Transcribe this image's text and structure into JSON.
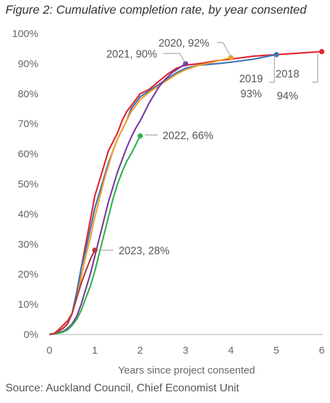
{
  "title": "Figure 2: Cumulative completion rate, by year consented",
  "source": "Source: Auckland Council, Chief Economist Unit",
  "chart_data": {
    "type": "line",
    "xlabel": "Years since project consented",
    "ylabel": "",
    "xlim": [
      0,
      6
    ],
    "ylim": [
      0,
      100
    ],
    "x_ticks": [
      "0",
      "1",
      "2",
      "3",
      "4",
      "5",
      "6"
    ],
    "y_ticks": [
      "0%",
      "10%",
      "20%",
      "30%",
      "40%",
      "50%",
      "60%",
      "70%",
      "80%",
      "90%",
      "100%"
    ],
    "grid": false,
    "legend": "none (series labelled directly)",
    "series": [
      {
        "name": "2018",
        "color": "#e3232c",
        "label_lines": [
          "2018",
          "94%"
        ],
        "end": [
          6,
          94
        ],
        "points": [
          [
            0,
            0
          ],
          [
            0.1,
            0.3
          ],
          [
            0.2,
            1.5
          ],
          [
            0.3,
            3
          ],
          [
            0.4,
            4.5
          ],
          [
            0.5,
            7
          ],
          [
            0.6,
            13
          ],
          [
            0.7,
            22
          ],
          [
            0.8,
            30
          ],
          [
            0.9,
            38
          ],
          [
            1.0,
            46
          ],
          [
            1.1,
            51
          ],
          [
            1.2,
            56
          ],
          [
            1.3,
            61
          ],
          [
            1.4,
            64
          ],
          [
            1.5,
            67
          ],
          [
            1.6,
            71
          ],
          [
            1.7,
            74
          ],
          [
            1.8,
            76
          ],
          [
            1.9,
            78
          ],
          [
            2.0,
            80
          ],
          [
            2.2,
            81.5
          ],
          [
            2.4,
            84
          ],
          [
            2.6,
            86.5
          ],
          [
            2.8,
            88.5
          ],
          [
            3.0,
            89.5
          ],
          [
            3.3,
            90
          ],
          [
            3.7,
            91
          ],
          [
            4.0,
            91.5
          ],
          [
            4.5,
            92.5
          ],
          [
            5.0,
            93
          ],
          [
            5.5,
            93.5
          ],
          [
            6.0,
            94
          ]
        ]
      },
      {
        "name": "2019",
        "color": "#3a73b5",
        "label_lines": [
          "2019",
          "93%"
        ],
        "end": [
          5,
          93
        ],
        "points": [
          [
            0,
            0
          ],
          [
            0.1,
            0.3
          ],
          [
            0.2,
            1
          ],
          [
            0.3,
            2
          ],
          [
            0.4,
            3.5
          ],
          [
            0.5,
            7
          ],
          [
            0.6,
            14
          ],
          [
            0.7,
            22
          ],
          [
            0.8,
            28
          ],
          [
            0.9,
            35
          ],
          [
            1.0,
            42
          ],
          [
            1.1,
            47
          ],
          [
            1.2,
            52
          ],
          [
            1.3,
            57
          ],
          [
            1.4,
            61
          ],
          [
            1.5,
            65
          ],
          [
            1.6,
            68
          ],
          [
            1.7,
            71
          ],
          [
            1.8,
            75
          ],
          [
            1.9,
            77
          ],
          [
            2.0,
            79
          ],
          [
            2.2,
            81
          ],
          [
            2.4,
            83
          ],
          [
            2.6,
            85
          ],
          [
            2.8,
            87
          ],
          [
            3.0,
            88.5
          ],
          [
            3.3,
            89.5
          ],
          [
            3.7,
            90
          ],
          [
            4.0,
            90.5
          ],
          [
            4.5,
            91.5
          ],
          [
            5.0,
            93
          ]
        ]
      },
      {
        "name": "2020",
        "color": "#f0a030",
        "label_lines": [
          "2020, 92%"
        ],
        "end": [
          4,
          92
        ],
        "points": [
          [
            0,
            0
          ],
          [
            0.1,
            0.3
          ],
          [
            0.2,
            1
          ],
          [
            0.3,
            2
          ],
          [
            0.4,
            3.5
          ],
          [
            0.5,
            7
          ],
          [
            0.6,
            12
          ],
          [
            0.7,
            19
          ],
          [
            0.8,
            26
          ],
          [
            0.9,
            32
          ],
          [
            1.0,
            39
          ],
          [
            1.1,
            45
          ],
          [
            1.2,
            51
          ],
          [
            1.3,
            56
          ],
          [
            1.4,
            61
          ],
          [
            1.5,
            65
          ],
          [
            1.6,
            68
          ],
          [
            1.7,
            71
          ],
          [
            1.8,
            74
          ],
          [
            1.9,
            76
          ],
          [
            2.0,
            78
          ],
          [
            2.2,
            80.5
          ],
          [
            2.4,
            82.5
          ],
          [
            2.6,
            84.5
          ],
          [
            2.8,
            86.5
          ],
          [
            3.0,
            88
          ],
          [
            3.3,
            89.5
          ],
          [
            3.6,
            90.5
          ],
          [
            4.0,
            92
          ]
        ]
      },
      {
        "name": "2021",
        "color": "#7b3aa0",
        "label_lines": [
          "2021, 90%"
        ],
        "end": [
          3,
          90
        ],
        "points": [
          [
            0,
            0
          ],
          [
            0.1,
            0.2
          ],
          [
            0.2,
            0.5
          ],
          [
            0.3,
            1
          ],
          [
            0.4,
            2
          ],
          [
            0.5,
            3.5
          ],
          [
            0.6,
            6
          ],
          [
            0.7,
            10
          ],
          [
            0.8,
            15
          ],
          [
            0.9,
            20
          ],
          [
            1.0,
            26
          ],
          [
            1.1,
            32
          ],
          [
            1.2,
            38
          ],
          [
            1.3,
            44
          ],
          [
            1.4,
            49
          ],
          [
            1.5,
            54
          ],
          [
            1.6,
            58
          ],
          [
            1.7,
            62
          ],
          [
            1.8,
            65.5
          ],
          [
            1.9,
            68.5
          ],
          [
            2.0,
            71
          ],
          [
            2.1,
            74
          ],
          [
            2.2,
            77
          ],
          [
            2.3,
            79.5
          ],
          [
            2.4,
            82
          ],
          [
            2.5,
            84
          ],
          [
            2.6,
            85.5
          ],
          [
            2.7,
            87
          ],
          [
            2.8,
            88
          ],
          [
            2.9,
            89
          ],
          [
            3.0,
            90
          ]
        ]
      },
      {
        "name": "2022",
        "color": "#2db34a",
        "label_lines": [
          "2022, 66%"
        ],
        "end": [
          2,
          66
        ],
        "points": [
          [
            0,
            0
          ],
          [
            0.1,
            0.2
          ],
          [
            0.2,
            0.4
          ],
          [
            0.3,
            0.8
          ],
          [
            0.4,
            1.5
          ],
          [
            0.5,
            3
          ],
          [
            0.6,
            5
          ],
          [
            0.7,
            8
          ],
          [
            0.8,
            12
          ],
          [
            0.9,
            16
          ],
          [
            1.0,
            21
          ],
          [
            1.1,
            27
          ],
          [
            1.2,
            33
          ],
          [
            1.3,
            39
          ],
          [
            1.4,
            45
          ],
          [
            1.5,
            50
          ],
          [
            1.6,
            54
          ],
          [
            1.7,
            57.5
          ],
          [
            1.8,
            60
          ],
          [
            1.9,
            63
          ],
          [
            2.0,
            66
          ]
        ]
      },
      {
        "name": "2023",
        "color": "#b33a3a",
        "label_lines": [
          "2023, 28%"
        ],
        "end": [
          1,
          28
        ],
        "points": [
          [
            0,
            0
          ],
          [
            0.1,
            0.3
          ],
          [
            0.2,
            1
          ],
          [
            0.3,
            2
          ],
          [
            0.4,
            3.5
          ],
          [
            0.5,
            7
          ],
          [
            0.6,
            12
          ],
          [
            0.7,
            17
          ],
          [
            0.8,
            21
          ],
          [
            0.9,
            25
          ],
          [
            1.0,
            28
          ]
        ]
      }
    ]
  }
}
